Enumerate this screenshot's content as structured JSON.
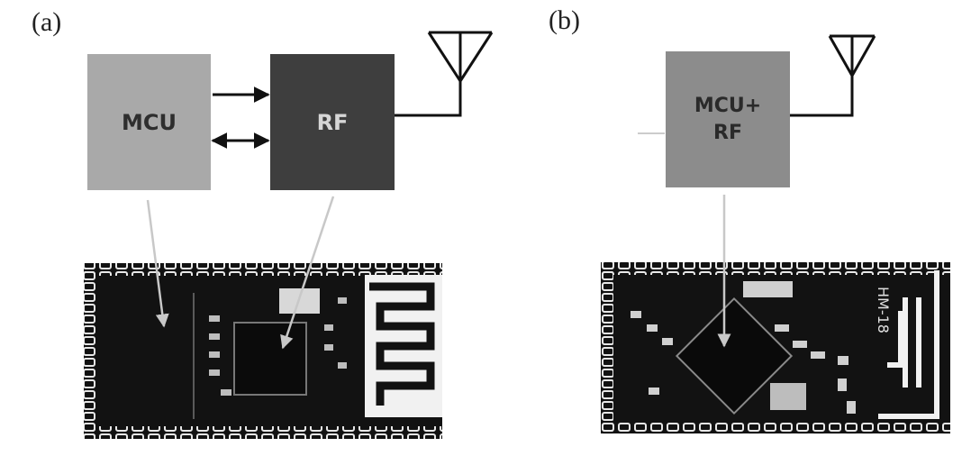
{
  "panel_a": {
    "label": "(a)",
    "blocks": {
      "mcu": "MCU",
      "rf": "RF"
    }
  },
  "panel_b": {
    "label": "(b)",
    "blocks": {
      "mcu_rf_line1": "MCU+",
      "mcu_rf_line2": "RF"
    },
    "module_silkscreen": "HM-18"
  },
  "colors": {
    "mcu_block": "#a9a9a9",
    "rf_block": "#3e3e3e",
    "combined_block": "#8c8c8c",
    "pcb": "#111111",
    "pointer_arrow": "#c8c8c8"
  }
}
